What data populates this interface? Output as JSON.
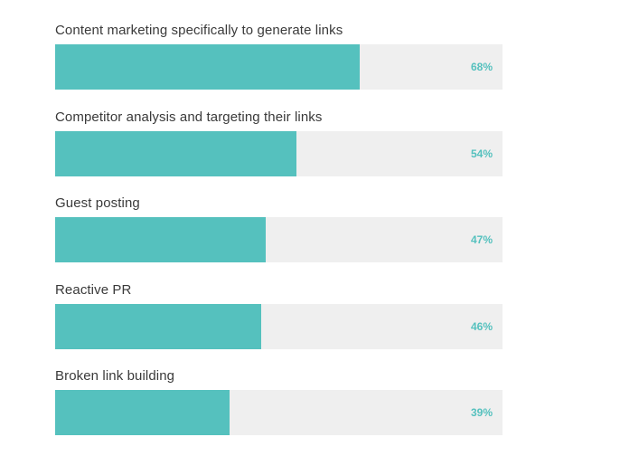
{
  "colors": {
    "bar_fill": "#55c1be",
    "track": "#efefef",
    "value_text": "#55c1be",
    "label_text": "#3a3a3a"
  },
  "chart_data": {
    "type": "bar",
    "orientation": "horizontal",
    "xlim": [
      0,
      100
    ],
    "grid": false,
    "categories": [
      "Content marketing specifically to generate links",
      "Competitor analysis and targeting their links",
      "Guest posting",
      "Reactive PR",
      "Broken link building"
    ],
    "values": [
      68,
      54,
      47,
      46,
      39
    ],
    "value_labels": [
      "68%",
      "54%",
      "47%",
      "46%",
      "39%"
    ]
  }
}
